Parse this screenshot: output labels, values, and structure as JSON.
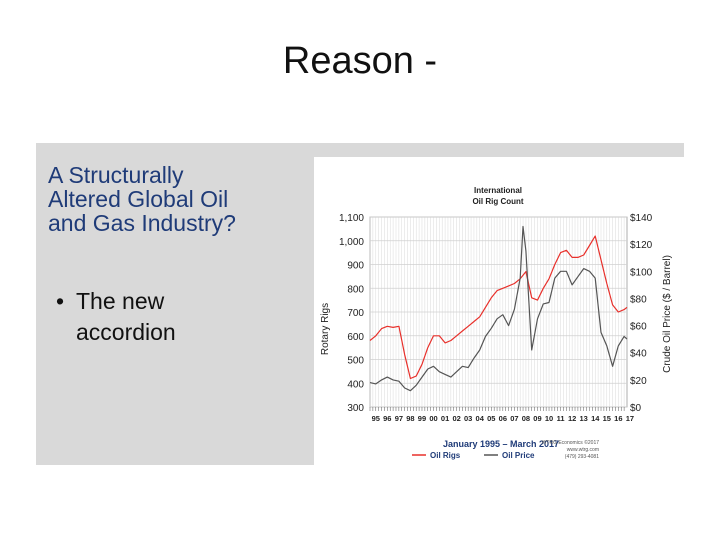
{
  "slide": {
    "title": "Reason -",
    "left_heading": [
      "A Structurally",
      "Altered Global Oil",
      "and Gas Industry?"
    ],
    "bullet_marker": "•",
    "bullet_lines": [
      "The new",
      "accordion"
    ]
  },
  "chart_data": {
    "type": "line",
    "title": [
      "International",
      "Oil Rig Count"
    ],
    "xlabel": "January 1995 – March 2017",
    "ylabel_left": "Rotary Rigs",
    "ylabel_right": "Crude Oil Price ($ / Barrel)",
    "ylim_left": [
      300,
      1100
    ],
    "ylim_right": [
      0,
      140
    ],
    "xlim": [
      1995,
      2017.25
    ],
    "y_ticks_left": [
      "300",
      "400",
      "500",
      "600",
      "700",
      "800",
      "900",
      "1,000",
      "1,100"
    ],
    "y_ticks_right": [
      "$0",
      "$20",
      "$40",
      "$60",
      "$80",
      "$100",
      "$120",
      "$140"
    ],
    "x_ticks": [
      "95",
      "96",
      "97",
      "98",
      "99",
      "00",
      "01",
      "02",
      "03",
      "04",
      "05",
      "06",
      "07",
      "08",
      "09",
      "10",
      "11",
      "12",
      "13",
      "14",
      "15",
      "16",
      "17"
    ],
    "legend": [
      "Oil Rigs",
      "Oil Price"
    ],
    "colors": {
      "oil_rigs": "#e8302b",
      "oil_price": "#555555",
      "grid": "#d0d0d0"
    },
    "source_note": [
      "WTRG Economics ©2017",
      "www.wtrg.com",
      "(479) 293-4081"
    ],
    "series": [
      {
        "name": "Oil Rigs",
        "axis": "left",
        "x": [
          1995,
          1995.5,
          1996,
          1996.5,
          1997,
          1997.5,
          1998,
          1998.5,
          1999,
          1999.5,
          2000,
          2000.5,
          2001,
          2001.5,
          2002,
          2002.5,
          2003,
          2003.5,
          2004,
          2004.5,
          2005,
          2005.5,
          2006,
          2006.5,
          2007,
          2007.5,
          2008,
          2008.5,
          2009,
          2009.5,
          2010,
          2010.5,
          2011,
          2011.5,
          2012,
          2012.5,
          2013,
          2013.5,
          2014,
          2014.5,
          2015,
          2015.5,
          2016,
          2016.5,
          2017,
          2017.25
        ],
        "values": [
          580,
          600,
          630,
          640,
          635,
          640,
          520,
          420,
          430,
          480,
          550,
          600,
          600,
          570,
          580,
          600,
          620,
          640,
          660,
          680,
          720,
          760,
          790,
          800,
          810,
          820,
          840,
          870,
          760,
          750,
          800,
          840,
          900,
          950,
          960,
          930,
          930,
          940,
          980,
          1020,
          920,
          820,
          730,
          700,
          710,
          720
        ]
      },
      {
        "name": "Oil Price",
        "axis": "right",
        "x": [
          1995,
          1995.5,
          1996,
          1996.5,
          1997,
          1997.5,
          1998,
          1998.5,
          1999,
          1999.5,
          2000,
          2000.5,
          2001,
          2001.5,
          2002,
          2002.5,
          2003,
          2003.5,
          2004,
          2004.5,
          2005,
          2005.5,
          2006,
          2006.5,
          2007,
          2007.5,
          2008,
          2008.25,
          2008.5,
          2009,
          2009.5,
          2010,
          2010.5,
          2011,
          2011.5,
          2012,
          2012.5,
          2013,
          2013.5,
          2014,
          2014.5,
          2015,
          2015.5,
          2016,
          2016.5,
          2017,
          2017.25
        ],
        "values": [
          18,
          17,
          20,
          22,
          20,
          19,
          14,
          12,
          16,
          22,
          28,
          30,
          26,
          24,
          22,
          26,
          30,
          29,
          36,
          42,
          52,
          58,
          65,
          68,
          60,
          72,
          95,
          133,
          115,
          42,
          65,
          76,
          77,
          95,
          100,
          100,
          90,
          96,
          102,
          100,
          95,
          55,
          45,
          30,
          45,
          52,
          50
        ]
      }
    ]
  }
}
